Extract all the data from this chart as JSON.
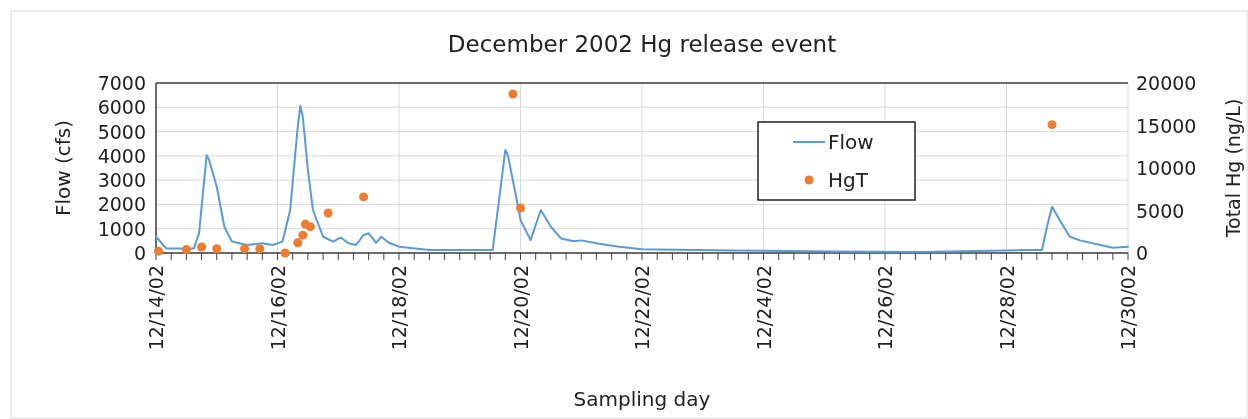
{
  "chart_data": {
    "type": "line",
    "title": "December 2002 Hg release event",
    "xlabel": "Sampling day",
    "ylabel": "Flow (cfs)",
    "y2label": "Total Hg (ng/L)",
    "xlim": [
      "2002-12-14",
      "2002-12-30"
    ],
    "xticks": [
      {
        "value": "2002-12-14",
        "label": "12/14/02"
      },
      {
        "value": "2002-12-14T06:00",
        "label": null
      },
      {
        "value": "2002-12-14T12:00",
        "label": null
      },
      {
        "value": "2002-12-14T18:00",
        "label": null
      },
      {
        "value": "2002-12-15",
        "label": null
      },
      {
        "value": "2002-12-15T06:00",
        "label": null
      },
      {
        "value": "2002-12-15T12:00",
        "label": null
      },
      {
        "value": "2002-12-15T18:00",
        "label": null
      },
      {
        "value": "2002-12-16",
        "label": "12/16/02"
      },
      {
        "value": "2002-12-16T06:00",
        "label": null
      },
      {
        "value": "2002-12-16T12:00",
        "label": null
      },
      {
        "value": "2002-12-16T18:00",
        "label": null
      },
      {
        "value": "2002-12-17",
        "label": null
      },
      {
        "value": "2002-12-17T06:00",
        "label": null
      },
      {
        "value": "2002-12-17T12:00",
        "label": null
      },
      {
        "value": "2002-12-17T18:00",
        "label": null
      },
      {
        "value": "2002-12-18",
        "label": "12/18/02"
      },
      {
        "value": "2002-12-18T06:00",
        "label": null
      },
      {
        "value": "2002-12-18T12:00",
        "label": null
      },
      {
        "value": "2002-12-18T18:00",
        "label": null
      },
      {
        "value": "2002-12-19",
        "label": null
      },
      {
        "value": "2002-12-19T06:00",
        "label": null
      },
      {
        "value": "2002-12-19T12:00",
        "label": null
      },
      {
        "value": "2002-12-19T18:00",
        "label": null
      },
      {
        "value": "2002-12-20",
        "label": "12/20/02"
      },
      {
        "value": "2002-12-20T06:00",
        "label": null
      },
      {
        "value": "2002-12-20T12:00",
        "label": null
      },
      {
        "value": "2002-12-20T18:00",
        "label": null
      },
      {
        "value": "2002-12-21",
        "label": null
      },
      {
        "value": "2002-12-21T06:00",
        "label": null
      },
      {
        "value": "2002-12-21T12:00",
        "label": null
      },
      {
        "value": "2002-12-21T18:00",
        "label": null
      },
      {
        "value": "2002-12-22",
        "label": "12/22/02"
      },
      {
        "value": "2002-12-22T06:00",
        "label": null
      },
      {
        "value": "2002-12-22T12:00",
        "label": null
      },
      {
        "value": "2002-12-22T18:00",
        "label": null
      },
      {
        "value": "2002-12-23",
        "label": null
      },
      {
        "value": "2002-12-23T06:00",
        "label": null
      },
      {
        "value": "2002-12-23T12:00",
        "label": null
      },
      {
        "value": "2002-12-23T18:00",
        "label": null
      },
      {
        "value": "2002-12-24",
        "label": "12/24/02"
      },
      {
        "value": "2002-12-24T06:00",
        "label": null
      },
      {
        "value": "2002-12-24T12:00",
        "label": null
      },
      {
        "value": "2002-12-24T18:00",
        "label": null
      },
      {
        "value": "2002-12-25",
        "label": null
      },
      {
        "value": "2002-12-25T06:00",
        "label": null
      },
      {
        "value": "2002-12-25T12:00",
        "label": null
      },
      {
        "value": "2002-12-25T18:00",
        "label": null
      },
      {
        "value": "2002-12-26",
        "label": "12/26/02"
      },
      {
        "value": "2002-12-26T06:00",
        "label": null
      },
      {
        "value": "2002-12-26T12:00",
        "label": null
      },
      {
        "value": "2002-12-26T18:00",
        "label": null
      },
      {
        "value": "2002-12-27",
        "label": null
      },
      {
        "value": "2002-12-27T06:00",
        "label": null
      },
      {
        "value": "2002-12-27T12:00",
        "label": null
      },
      {
        "value": "2002-12-27T18:00",
        "label": null
      },
      {
        "value": "2002-12-28",
        "label": "12/28/02"
      },
      {
        "value": "2002-12-28T06:00",
        "label": null
      },
      {
        "value": "2002-12-28T12:00",
        "label": null
      },
      {
        "value": "2002-12-28T18:00",
        "label": null
      },
      {
        "value": "2002-12-29",
        "label": null
      },
      {
        "value": "2002-12-29T06:00",
        "label": null
      },
      {
        "value": "2002-12-29T12:00",
        "label": null
      },
      {
        "value": "2002-12-29T18:00",
        "label": null
      },
      {
        "value": "2002-12-30",
        "label": "12/30/02"
      }
    ],
    "ylim": [
      0,
      7000
    ],
    "yticks": [
      0,
      1000,
      2000,
      3000,
      4000,
      5000,
      6000,
      7000
    ],
    "y2lim": [
      0,
      20000
    ],
    "y2ticks": [
      0,
      5000,
      10000,
      15000,
      20000
    ],
    "grid": true,
    "legend": "top right",
    "series": [
      {
        "name": "Flow",
        "color": "#5b9bd5",
        "marker": "none",
        "line_style": "solid",
        "x": [
          "2002-12-14T00:00",
          "2002-12-14T04:00",
          "2002-12-14T15:00",
          "2002-12-14T17:00",
          "2002-12-14T20:00",
          "2002-12-14T21:00",
          "2002-12-15T00:00",
          "2002-12-15T03:00",
          "2002-12-15T06:00",
          "2002-12-15T12:00",
          "2002-12-15T18:00",
          "2002-12-15T22:00",
          "2002-12-16T02:00",
          "2002-12-16T05:00",
          "2002-12-16T08:00",
          "2002-12-16T09:00",
          "2002-12-16T10:00",
          "2002-12-16T12:00",
          "2002-12-16T14:00",
          "2002-12-16T18:00",
          "2002-12-16T22:00",
          "2002-12-17T01:00",
          "2002-12-17T04:00",
          "2002-12-17T07:00",
          "2002-12-17T10:00",
          "2002-12-17T12:00",
          "2002-12-17T15:00",
          "2002-12-17T17:00",
          "2002-12-17T20:00",
          "2002-12-18T00:00",
          "2002-12-18T12:00",
          "2002-12-19T13:00",
          "2002-12-19T15:00",
          "2002-12-19T18:00",
          "2002-12-19T19:00",
          "2002-12-19T22:00",
          "2002-12-20T00:00",
          "2002-12-20T04:00",
          "2002-12-20T08:00",
          "2002-12-20T12:00",
          "2002-12-20T16:00",
          "2002-12-20T21:00",
          "2002-12-21T00:00",
          "2002-12-21T07:00",
          "2002-12-21T15:00",
          "2002-12-22T00:00",
          "2002-12-23T12:00",
          "2002-12-25T04:00",
          "2002-12-26T14:00",
          "2002-12-28T08:00",
          "2002-12-28T14:00",
          "2002-12-28T16:00",
          "2002-12-28T18:00",
          "2002-12-28T21:00",
          "2002-12-29T01:00",
          "2002-12-29T05:00",
          "2002-12-29T13:00",
          "2002-12-29T18:00",
          "2002-12-30T00:00"
        ],
        "values": [
          670,
          190,
          190,
          810,
          4030,
          3830,
          2730,
          1080,
          470,
          330,
          400,
          330,
          470,
          1770,
          5200,
          6050,
          5610,
          3420,
          1770,
          670,
          470,
          640,
          400,
          330,
          740,
          810,
          420,
          670,
          420,
          260,
          120,
          120,
          1770,
          4240,
          4030,
          2460,
          1360,
          530,
          1770,
          1080,
          600,
          480,
          520,
          380,
          260,
          150,
          100,
          60,
          40,
          120,
          120,
          1080,
          1900,
          1360,
          670,
          520,
          330,
          220,
          260
        ]
      },
      {
        "name": "HgT",
        "type": "scatter",
        "axis": "y2",
        "color": "#ed7d31",
        "marker": "circle",
        "x": [
          "2002-12-14T01:00",
          "2002-12-14T12:00",
          "2002-12-14T18:00",
          "2002-12-15T00:00",
          "2002-12-15T11:00",
          "2002-12-15T17:00",
          "2002-12-16T03:00",
          "2002-12-16T08:00",
          "2002-12-16T10:00",
          "2002-12-16T11:00",
          "2002-12-16T13:00",
          "2002-12-16T20:00",
          "2002-12-17T10:00",
          "2002-12-19T21:00",
          "2002-12-20T00:00",
          "2002-12-28T18:00"
        ],
        "values": [
          200,
          400,
          700,
          500,
          500,
          500,
          0,
          1200,
          2100,
          3400,
          3100,
          4700,
          6600,
          18700,
          5300,
          15100
        ]
      }
    ]
  }
}
